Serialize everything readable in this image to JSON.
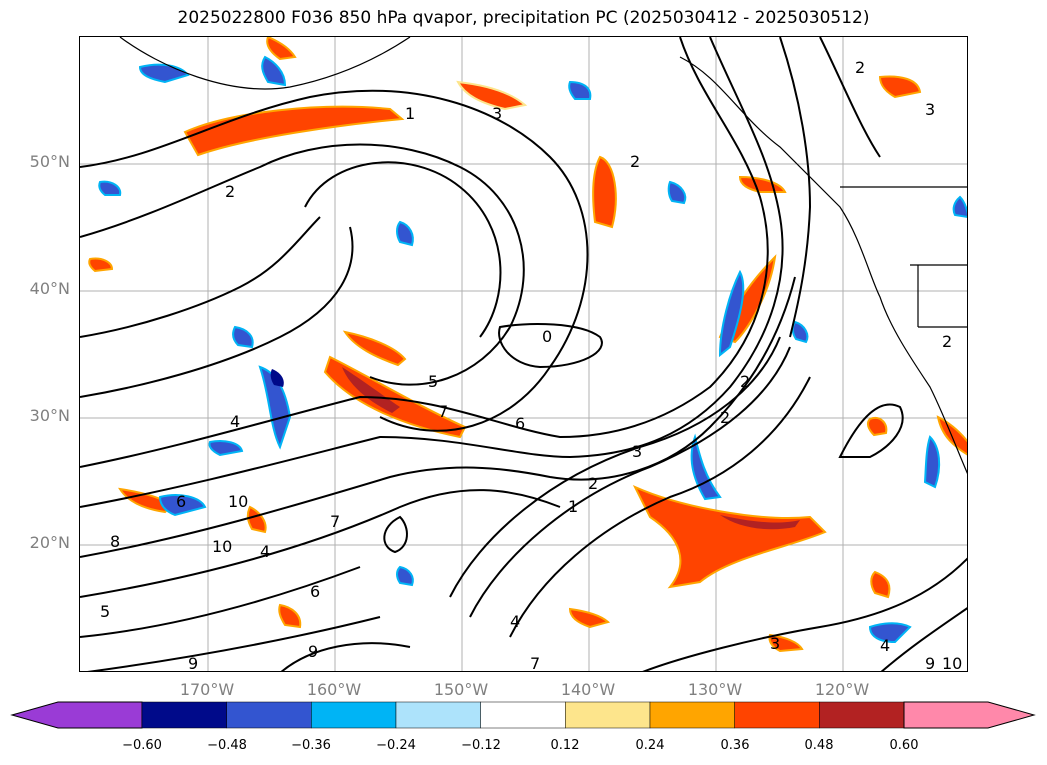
{
  "title": "2025022800 F036 850 hPa qvapor, precipitation PC (2025030412 - 2025030512)",
  "latitude_labels": [
    "50°N",
    "40°N",
    "30°N",
    "20°N"
  ],
  "longitude_labels": [
    "170°W",
    "160°W",
    "150°W",
    "140°W",
    "130°W",
    "120°W"
  ],
  "contour_labels": [
    "1",
    "3",
    "2",
    "2",
    "2",
    "3",
    "2",
    "4",
    "0",
    "2",
    "2",
    "5",
    "3",
    "4",
    "6",
    "7",
    "10",
    "6",
    "8",
    "10",
    "7",
    "5",
    "4",
    "9",
    "9",
    "7",
    "6",
    "1",
    "2",
    "3",
    "4",
    "9",
    "10"
  ],
  "colorbar": {
    "ticks": [
      "−0.60",
      "−0.48",
      "−0.36",
      "−0.24",
      "−0.12",
      "0.12",
      "0.24",
      "0.36",
      "0.48",
      "0.60"
    ],
    "colors": [
      "#9a3bd6",
      "#000a8a",
      "#3355d0",
      "#00b4f5",
      "#ade3fb",
      "#ffffff",
      "#fde58c",
      "#ffa500",
      "#ff4400",
      "#b22222",
      "#ff88aa"
    ],
    "extend": "both"
  },
  "map_style": {
    "coastline_color": "#000000",
    "grid_color": "#aaaaaa",
    "contour_color": "#000000"
  }
}
